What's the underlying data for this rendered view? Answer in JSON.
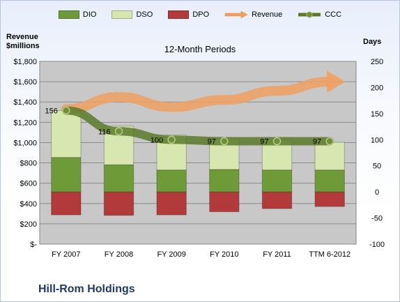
{
  "chart_data": {
    "type": "bar",
    "title": "12-Month Periods",
    "company": "Hill-Rom Holdings",
    "left_axis_title": "Revenue\n$millions",
    "right_axis_title": "Days",
    "categories": [
      "FY 2007",
      "FY 2008",
      "FY 2009",
      "FY 2010",
      "FY 2011",
      "TTM 6-2012"
    ],
    "left_ticks": [
      "$-",
      "$200",
      "$400",
      "$600",
      "$800",
      "$1,000",
      "$1,200",
      "$1,400",
      "$1,600",
      "$1,800"
    ],
    "right_ticks": [
      "-100",
      "-50",
      "0",
      "50",
      "100",
      "150",
      "200",
      "250"
    ],
    "left_ylim": [
      0,
      1800
    ],
    "right_ylim": [
      -100,
      250
    ],
    "grid": true,
    "legend_position": "top",
    "series": [
      {
        "name": "DIO",
        "color": "#6f9a38",
        "values": [
          66,
          52,
          42,
          43,
          42,
          42
        ]
      },
      {
        "name": "DSO",
        "color": "#d8e6b0",
        "values": [
          90,
          74,
          67,
          59,
          58,
          53
        ]
      },
      {
        "name": "DPO",
        "color": "#b33a3a",
        "values": [
          -44,
          -45,
          -44,
          -38,
          -32,
          -28
        ]
      },
      {
        "name": "Revenue",
        "color": "#f0a060",
        "values": [
          1330,
          1450,
          1350,
          1420,
          1510,
          1600
        ]
      },
      {
        "name": "CCC",
        "color": "#5a7a2a",
        "values": [
          156,
          116,
          100,
          97,
          97,
          97
        ]
      }
    ],
    "ccc_labels": [
      "156",
      "116",
      "100",
      "97",
      "97",
      "97"
    ]
  },
  "legend": [
    {
      "label": "DIO",
      "kind": "bar",
      "color": "#6f9a38"
    },
    {
      "label": "DSO",
      "kind": "bar",
      "color": "#d8e6b0"
    },
    {
      "label": "DPO",
      "kind": "bar",
      "color": "#b33a3a"
    },
    {
      "label": "Revenue",
      "kind": "arrow",
      "color": "#f0a060"
    },
    {
      "label": "CCC",
      "kind": "line",
      "color": "#5a7a2a"
    }
  ]
}
